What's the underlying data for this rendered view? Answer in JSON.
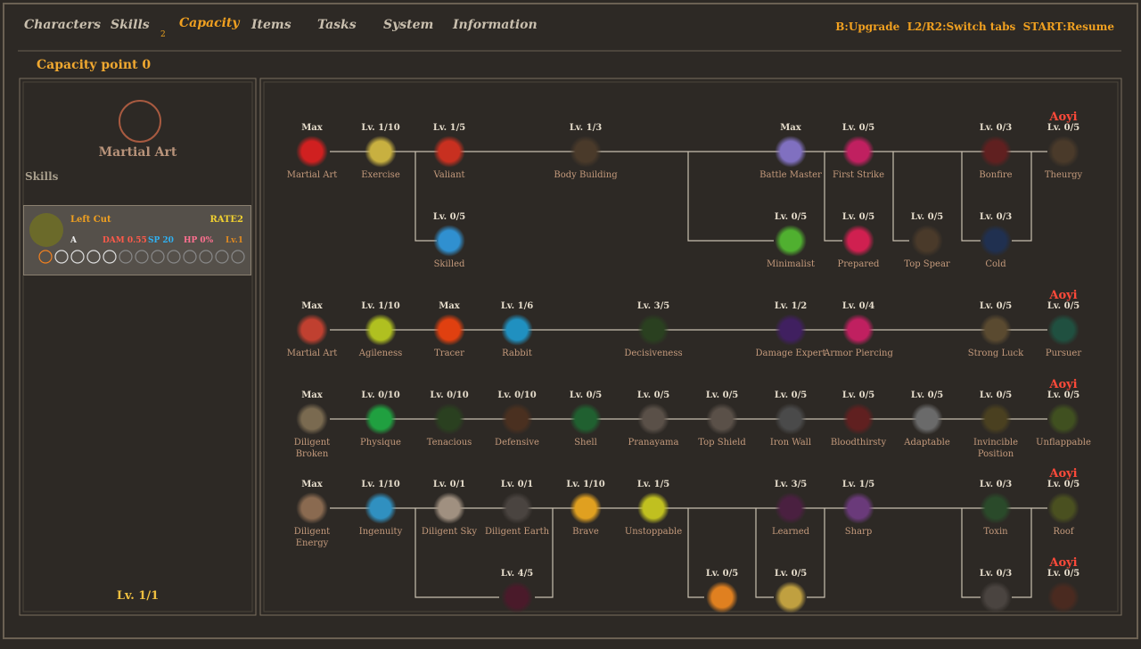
{
  "tabs": [
    "Characters",
    "Skills",
    "Capacity",
    "Items",
    "Tasks",
    "System",
    "Information"
  ],
  "tab_badge": "2",
  "controls": "B:Upgrade  L2/R2:Switch tabs  START:Resume",
  "capacity_point": "Capacity point 0",
  "left_panel": {
    "title": "Martial Art",
    "skills_label": "Skills",
    "card": {
      "name": "Left Cut",
      "rate": "RATE2",
      "grade": "A",
      "dam": "DAM 0.55",
      "sp": "SP 20",
      "hp": "HP 0%",
      "lv": "Lv.1"
    },
    "level": "Lv. 1/1"
  },
  "tree": {
    "nodes": [
      {
        "level": "Max",
        "label": "Martial Art"
      },
      {
        "level": "Lv. 1/10",
        "label": "Exercise"
      },
      {
        "level": "Lv. 1/5",
        "label": "Valiant"
      },
      {
        "level": "Lv. 1/3",
        "label": "Body Building"
      },
      {
        "level": "Max",
        "label": "Battle Master"
      },
      {
        "level": "Lv. 0/5",
        "label": "First Strike"
      },
      {
        "level": "Lv. 0/3",
        "label": "Bonfire"
      },
      {
        "level": "Lv. 0/5",
        "label": "Theurgy",
        "aoyi": "Aoyi"
      },
      {
        "level": "Lv. 0/5",
        "label": "Skilled"
      },
      {
        "level": "Lv. 0/5",
        "label": "Minimalist"
      },
      {
        "level": "Lv. 0/5",
        "label": "Prepared"
      },
      {
        "level": "Lv. 0/5",
        "label": "Top Spear"
      },
      {
        "level": "Lv. 0/3",
        "label": "Cold"
      },
      {
        "level": "Max",
        "label": "Martial Art"
      },
      {
        "level": "Lv. 1/10",
        "label": "Agileness"
      },
      {
        "level": "Max",
        "label": "Tracer"
      },
      {
        "level": "Lv. 1/6",
        "label": "Rabbit"
      },
      {
        "level": "Lv. 3/5",
        "label": "Decisiveness"
      },
      {
        "level": "Lv. 1/2",
        "label": "Damage Expert"
      },
      {
        "level": "Lv. 0/4",
        "label": "Armor Piercing"
      },
      {
        "level": "Lv. 0/5",
        "label": "Strong Luck"
      },
      {
        "level": "Lv. 0/5",
        "label": "Pursuer",
        "aoyi": "Aoyi"
      },
      {
        "level": "Max",
        "label": "Diligent Broken"
      },
      {
        "level": "Lv. 0/10",
        "label": "Physique"
      },
      {
        "level": "Lv. 0/10",
        "label": "Tenacious"
      },
      {
        "level": "Lv. 0/10",
        "label": "Defensive"
      },
      {
        "level": "Lv. 0/5",
        "label": "Shell"
      },
      {
        "level": "Lv. 0/5",
        "label": "Pranayama"
      },
      {
        "level": "Lv. 0/5",
        "label": "Top Shield"
      },
      {
        "level": "Lv. 0/5",
        "label": "Iron Wall"
      },
      {
        "level": "Lv. 0/5",
        "label": "Bloodthirsty"
      },
      {
        "level": "Lv. 0/5",
        "label": "Adaptable"
      },
      {
        "level": "Lv. 0/5",
        "label": "Invincible Position"
      },
      {
        "level": "Lv. 0/5",
        "label": "Unflappable",
        "aoyi": "Aoyi"
      },
      {
        "level": "Max",
        "label": "Diligent Energy"
      },
      {
        "level": "Lv. 1/10",
        "label": "Ingenuity"
      },
      {
        "level": "Lv. 0/1",
        "label": "Diligent Sky"
      },
      {
        "level": "Lv. 0/1",
        "label": "Diligent Earth"
      },
      {
        "level": "Lv. 1/10",
        "label": "Brave"
      },
      {
        "level": "Lv. 1/5",
        "label": "Unstoppable"
      },
      {
        "level": "Lv. 3/5",
        "label": "Learned"
      },
      {
        "level": "Lv. 1/5",
        "label": "Sharp"
      },
      {
        "level": "Lv. 0/3",
        "label": "Toxin"
      },
      {
        "level": "Lv. 0/5",
        "label": "Roof",
        "aoyi": "Aoyi"
      },
      {
        "level": "Lv. 4/5"
      },
      {
        "level": "Lv. 0/5"
      },
      {
        "level": "Lv. 0/5"
      },
      {
        "level": "Lv. 0/3"
      },
      {
        "level": "Lv. 0/5",
        "aoyi": "Aoyi"
      }
    ]
  }
}
